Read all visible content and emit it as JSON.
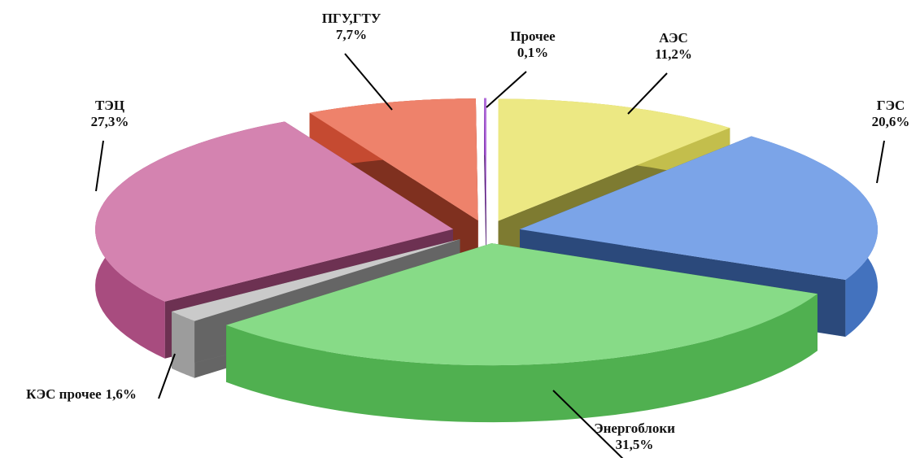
{
  "chart_data": {
    "type": "pie3d",
    "categories": [
      "АЭС",
      "ГЭС",
      "Энергоблоки",
      "КЭС прочее",
      "ТЭЦ",
      "ПГУ,ГТУ",
      "Прочее"
    ],
    "values": [
      11.2,
      20.6,
      31.5,
      1.6,
      27.3,
      7.7,
      0.1
    ],
    "value_labels": [
      "11,2%",
      "20,6%",
      "31,5%",
      "1,6%",
      "27,3%",
      "7,7%",
      "0,1%"
    ],
    "colors": [
      "#e6e05a",
      "#4f86e0",
      "#5fcf5f",
      "#b8b8b8",
      "#c65a96",
      "#e8583a",
      "#9a3fd0"
    ]
  }
}
